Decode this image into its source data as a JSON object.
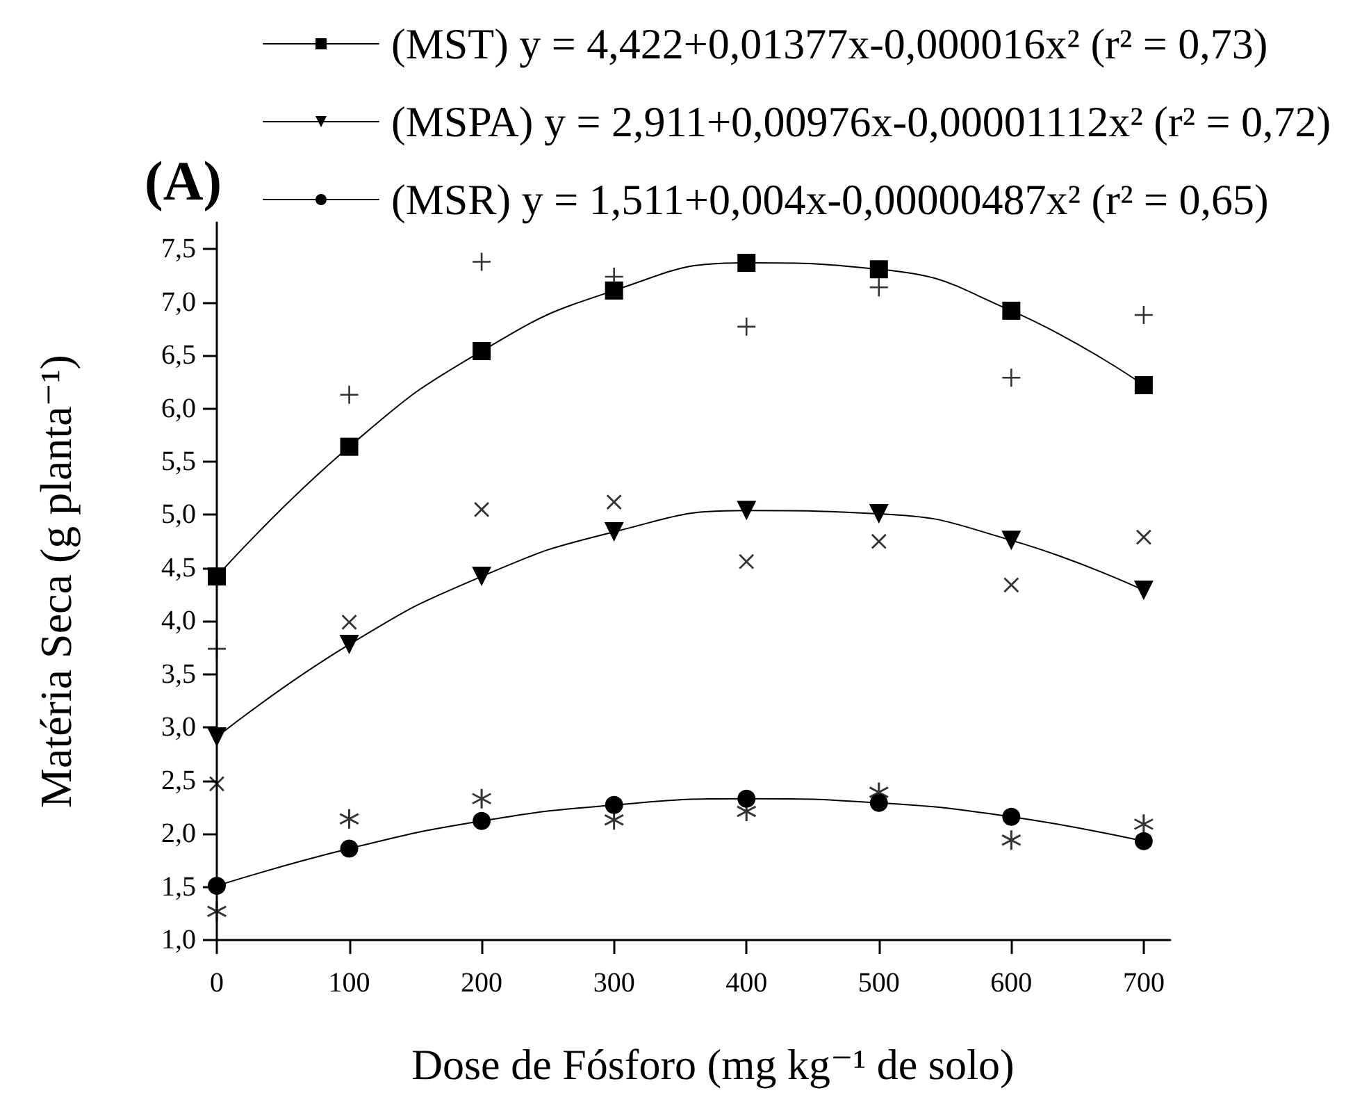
{
  "chart_data": {
    "type": "line",
    "annotations": [
      "(A)"
    ],
    "xlabel": "Dose de Fósforo (mg kg⁻¹ de solo)",
    "ylabel": "Matéria Seca (g planta⁻¹)",
    "x": [
      0,
      100,
      200,
      300,
      400,
      500,
      600,
      700
    ],
    "xlim": [
      0,
      720
    ],
    "xticks": [
      0,
      100,
      200,
      300,
      400,
      500,
      600,
      700
    ],
    "ylim": [
      1.0,
      7.75
    ],
    "yticks": [
      {
        "value": 1.0,
        "label": "1,0"
      },
      {
        "value": 1.5,
        "label": "1,5"
      },
      {
        "value": 2.0,
        "label": "2,0"
      },
      {
        "value": 2.5,
        "label": "2,5"
      },
      {
        "value": 3.0,
        "label": "3,0"
      },
      {
        "value": 3.5,
        "label": "3,5"
      },
      {
        "value": 4.0,
        "label": "4,0"
      },
      {
        "value": 4.5,
        "label": "4,5"
      },
      {
        "value": 5.0,
        "label": "5,0"
      },
      {
        "value": 5.5,
        "label": "5,5"
      },
      {
        "value": 6.0,
        "label": "6,0"
      },
      {
        "value": 6.5,
        "label": "6,5"
      },
      {
        "value": 7.0,
        "label": "7,0"
      },
      {
        "value": 7.5,
        "label": "7,5"
      }
    ],
    "grid": false,
    "legend": "top",
    "line_style": "solid",
    "series": [
      {
        "name": "(MST) y = 4,422+0,01377x-0,000016x² (r² = 0,73)",
        "color": "#000000",
        "marker": "square",
        "values": [
          4.42,
          5.64,
          6.54,
          7.11,
          7.37,
          7.31,
          6.92,
          6.22
        ]
      },
      {
        "name": "(MSPA) y = 2,911+0,00976x-0,00001112x² (r² = 0,72)",
        "color": "#000000",
        "marker": "triangle",
        "values": [
          2.91,
          3.78,
          4.42,
          4.84,
          5.04,
          5.01,
          4.76,
          4.29
        ]
      },
      {
        "name": "(MSR) y = 1,511+0,004x-0,00000487x² (r² = 0,65)",
        "color": "#000000",
        "marker": "circle",
        "values": [
          1.51,
          1.86,
          2.12,
          2.27,
          2.33,
          2.29,
          2.16,
          1.93
        ]
      },
      {
        "type": "scatter",
        "color": "#000000",
        "marker": "plus",
        "values": [
          3.74,
          6.13,
          7.38,
          7.24,
          6.77,
          7.14,
          6.29,
          6.88
        ]
      },
      {
        "type": "scatter",
        "color": "#000000",
        "marker": "cross",
        "values": [
          2.47,
          3.99,
          5.05,
          5.12,
          4.56,
          4.75,
          4.34,
          4.79
        ]
      },
      {
        "type": "scatter",
        "color": "#000000",
        "values": [
          1.27,
          2.14,
          2.33,
          2.13,
          2.21,
          2.39,
          1.94,
          2.09
        ]
      }
    ]
  }
}
